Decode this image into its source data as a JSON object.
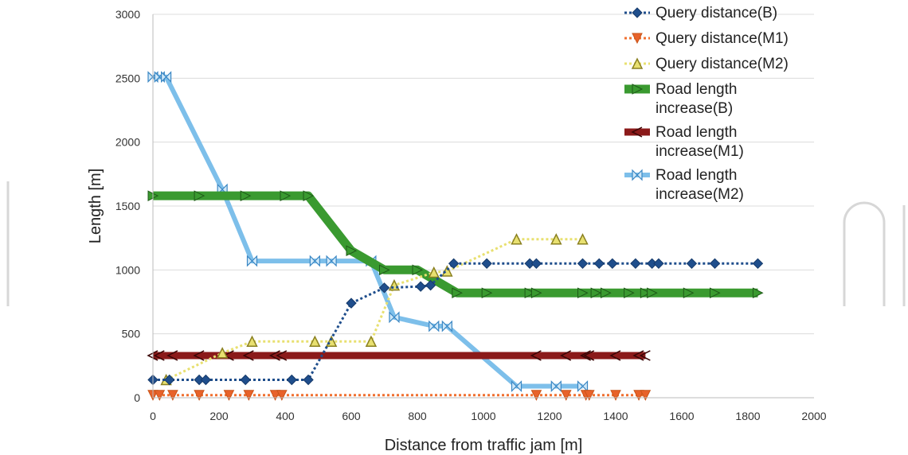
{
  "chart_data": {
    "type": "line",
    "xlabel": "Distance from traffic jam [m]",
    "ylabel": "Length [m]",
    "xlim": [
      0,
      2000
    ],
    "ylim": [
      0,
      3000
    ],
    "xticks": [
      "0",
      "200",
      "400",
      "600",
      "800",
      "1000",
      "1200",
      "1400",
      "1600",
      "1800",
      "2000"
    ],
    "yticks": [
      "0",
      "500",
      "1000",
      "1500",
      "2000",
      "2500",
      "3000"
    ],
    "grid": "horizontal",
    "legend_position": "top-right",
    "series": [
      {
        "name": "Query distance(B)",
        "color": "#1f4e8c",
        "marker": "diamond",
        "line_style": "dotted",
        "x": [
          0,
          50,
          140,
          160,
          280,
          420,
          470,
          600,
          700,
          810,
          840,
          910,
          1010,
          1140,
          1160,
          1300,
          1350,
          1390,
          1460,
          1510,
          1530,
          1630,
          1700,
          1830
        ],
        "y": [
          140,
          140,
          140,
          140,
          140,
          140,
          140,
          740,
          860,
          870,
          880,
          1050,
          1050,
          1050,
          1050,
          1050,
          1050,
          1050,
          1050,
          1050,
          1050,
          1050,
          1050,
          1050
        ]
      },
      {
        "name": "Query distance(M1)",
        "color": "#f07030",
        "marker": "triangle-down",
        "line_style": "dotted",
        "x": [
          0,
          20,
          60,
          140,
          230,
          290,
          370,
          390,
          1160,
          1250,
          1310,
          1320,
          1400,
          1470,
          1490
        ],
        "y": [
          20,
          20,
          20,
          20,
          20,
          20,
          20,
          20,
          20,
          20,
          20,
          20,
          20,
          20,
          20
        ]
      },
      {
        "name": "Query distance(M2)",
        "color": "#e8e070",
        "marker": "triangle-up",
        "line_style": "dotted",
        "x": [
          40,
          210,
          300,
          490,
          540,
          660,
          730,
          850,
          890,
          1100,
          1220,
          1300
        ],
        "y": [
          140,
          350,
          440,
          440,
          440,
          440,
          880,
          980,
          990,
          1240,
          1240,
          1240
        ]
      },
      {
        "name": "Road length increase(B)",
        "color": "#3a9a30",
        "marker": "triangle-right",
        "line_style": "solid",
        "x": [
          0,
          140,
          280,
          400,
          470,
          600,
          700,
          800,
          920,
          1010,
          1140,
          1160,
          1300,
          1340,
          1370,
          1440,
          1490,
          1510,
          1620,
          1700,
          1830
        ],
        "y": [
          1580,
          1580,
          1580,
          1580,
          1580,
          1150,
          1000,
          1000,
          820,
          820,
          820,
          820,
          820,
          820,
          820,
          820,
          820,
          820,
          820,
          820,
          820
        ]
      },
      {
        "name": "Road length increase(M1)",
        "color": "#8b1a1a",
        "marker": "arrow-left",
        "line_style": "solid",
        "x": [
          0,
          20,
          60,
          140,
          230,
          290,
          370,
          390,
          1160,
          1250,
          1310,
          1320,
          1400,
          1470,
          1490
        ],
        "y": [
          330,
          330,
          330,
          330,
          330,
          330,
          330,
          330,
          330,
          330,
          330,
          330,
          330,
          330,
          330
        ]
      },
      {
        "name": "Road length increase(M2)",
        "color": "#7dbfea",
        "marker": "bowtie",
        "line_style": "solid",
        "x": [
          0,
          20,
          40,
          210,
          300,
          490,
          540,
          660,
          730,
          850,
          890,
          1100,
          1220,
          1300
        ],
        "y": [
          2510,
          2510,
          2510,
          1630,
          1070,
          1070,
          1070,
          1070,
          630,
          560,
          560,
          90,
          90,
          90
        ]
      }
    ]
  },
  "legend": {
    "lines": [
      [
        "Query distance(B)"
      ],
      [
        "Query distance(M1)"
      ],
      [
        "Query distance(M2)"
      ],
      [
        "Road length",
        "increase(B)"
      ],
      [
        "Road length",
        "increase(M1)"
      ],
      [
        "Road length",
        "increase(M2)"
      ]
    ]
  }
}
